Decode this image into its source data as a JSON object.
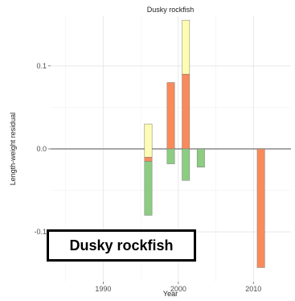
{
  "chart_data": {
    "type": "bar",
    "title": "Dusky rockfish",
    "xlabel": "Year",
    "ylabel": "Length-weight residual",
    "xlim": [
      1983,
      2015
    ],
    "ylim": [
      -0.16,
      0.16
    ],
    "x_ticks": [
      1990,
      2000,
      2010
    ],
    "y_ticks": [
      -0.1,
      0.0,
      0.1
    ],
    "x_tick_labels": [
      "1990",
      "2000",
      "2010"
    ],
    "y_tick_labels": [
      "-0.1",
      "0.0",
      "0.1"
    ],
    "grid": true,
    "bar_width_years": 1,
    "series": [
      {
        "color": "#fdfcb3",
        "points": [
          {
            "x": 1996,
            "y0": -0.01,
            "y1": 0.03
          },
          {
            "x": 2001,
            "y0": 0.09,
            "y1": 0.155
          }
        ]
      },
      {
        "color": "#f98a5a",
        "points": [
          {
            "x": 1996,
            "y0": -0.015,
            "y1": -0.01
          },
          {
            "x": 1999,
            "y0": 0.0,
            "y1": 0.08
          },
          {
            "x": 2001,
            "y0": 0.0,
            "y1": 0.09
          },
          {
            "x": 2011,
            "y0": -0.143,
            "y1": 0.0
          }
        ]
      },
      {
        "color": "#8ccd82",
        "points": [
          {
            "x": 1996,
            "y0": -0.08,
            "y1": -0.015
          },
          {
            "x": 1999,
            "y0": -0.018,
            "y1": 0.0
          },
          {
            "x": 2001,
            "y0": -0.038,
            "y1": 0.0
          },
          {
            "x": 2003,
            "y0": -0.022,
            "y1": 0.0
          }
        ]
      }
    ]
  },
  "inset_label": "Dusky rockfish"
}
